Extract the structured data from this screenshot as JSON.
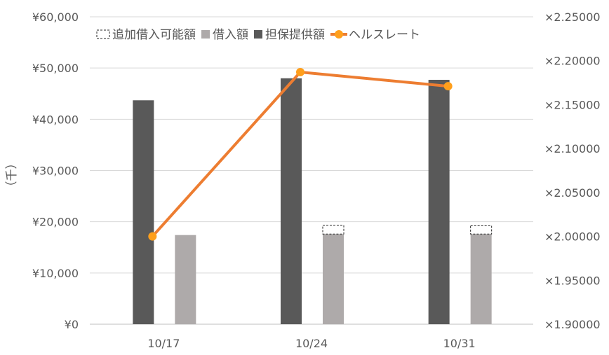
{
  "chart_data": {
    "type": "bar",
    "categories": [
      "10/17",
      "10/24",
      "10/31"
    ],
    "y_unit_label": "（千）",
    "ylim": [
      0,
      60000
    ],
    "y_ticks": [
      "¥0",
      "¥10,000",
      "¥20,000",
      "¥30,000",
      "¥40,000",
      "¥50,000",
      "¥60,000"
    ],
    "y2lim": [
      1.9,
      2.25
    ],
    "y2_ticks": [
      "×1.90000",
      "×1.95000",
      "×2.00000",
      "×2.05000",
      "×2.10000",
      "×2.15000",
      "×2.20000",
      "×2.25000"
    ],
    "legend_position": "top",
    "series": [
      {
        "name": "担保提供額",
        "kind": "bar",
        "color": "#595959",
        "values": [
          43700,
          48000,
          47700
        ]
      },
      {
        "name": "借入額",
        "kind": "bar",
        "color": "#aeaaaa",
        "values": [
          17400,
          17600,
          17600
        ]
      },
      {
        "name": "追加借入可能額",
        "kind": "bar-stack-dashed",
        "color": "#ffffff",
        "values": [
          0,
          1700,
          1600
        ]
      },
      {
        "name": "ヘルスレート",
        "kind": "line",
        "axis": "right",
        "color": "#ed7d31",
        "marker_color": "#ff9f1c",
        "values": [
          2.0,
          2.187,
          2.171
        ]
      }
    ],
    "legend_order": [
      "追加借入可能額",
      "借入額",
      "担保提供額",
      "ヘルスレート"
    ],
    "grid": true
  }
}
